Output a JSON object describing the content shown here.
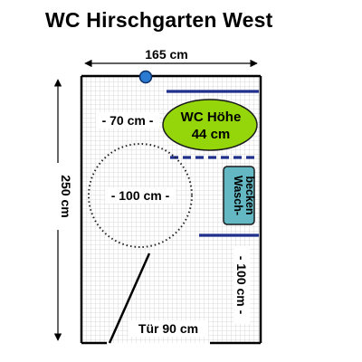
{
  "title": "WC Hirschgarten West",
  "dimensions": {
    "width": "165 cm",
    "height": "250 cm",
    "wc_clearance": "- 70 cm -",
    "turning_circle": "- 100 cm -",
    "right_clearance": "- 100 cm -",
    "door": "Tür 90 cm"
  },
  "fixtures": {
    "wc_line1": "WC Höhe",
    "wc_line2": "44 cm",
    "sink_line1": "Wasch-",
    "sink_line2": "becken"
  },
  "colors": {
    "wc_fill": "#94d60a",
    "sink_fill": "#64b8c4",
    "handrail": "#1f2f8c",
    "valve": "#2a7bd1",
    "grid": "#cfcfcf"
  }
}
